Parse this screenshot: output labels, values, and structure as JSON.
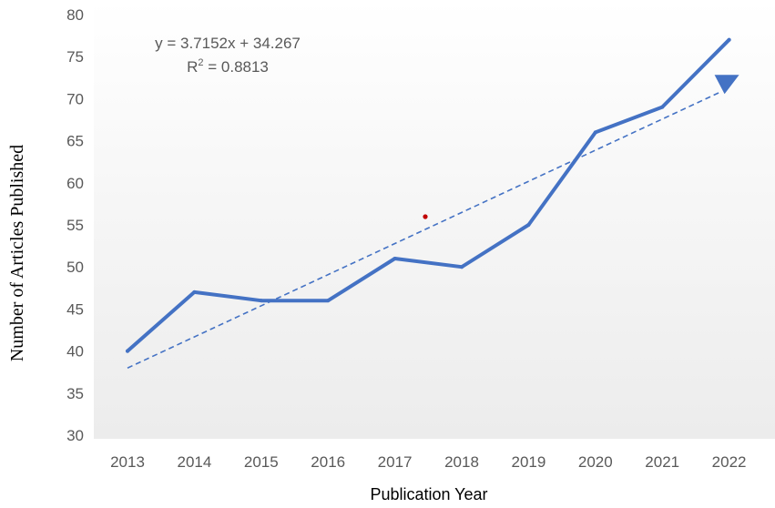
{
  "chart_data": {
    "type": "line",
    "categories": [
      "2013",
      "2014",
      "2015",
      "2016",
      "2017",
      "2018",
      "2019",
      "2020",
      "2021",
      "2022"
    ],
    "series": [
      {
        "values": [
          40,
          47,
          46,
          46,
          51,
          50,
          55,
          66,
          69,
          77
        ]
      }
    ],
    "trendline": {
      "type": "linear",
      "slope": 3.7152,
      "intercept": 34.267,
      "equation_label": "y = 3.7152x + 34.267",
      "r2_prefix": "R",
      "r2_sup": "2",
      "r2_value": " = 0.8813"
    },
    "xlabel": "Publication Year",
    "ylabel": "Number of Articles Published",
    "ylim": [
      30,
      80
    ],
    "yticks": [
      30,
      35,
      40,
      45,
      50,
      55,
      60,
      65,
      70,
      75,
      80
    ],
    "grid": false,
    "colors": {
      "series": "#4472c4",
      "trendline": "#4472c4",
      "marker_dot": "#c00000",
      "plot_background_top": "#ffffff",
      "plot_background_bottom": "#ececec"
    }
  }
}
